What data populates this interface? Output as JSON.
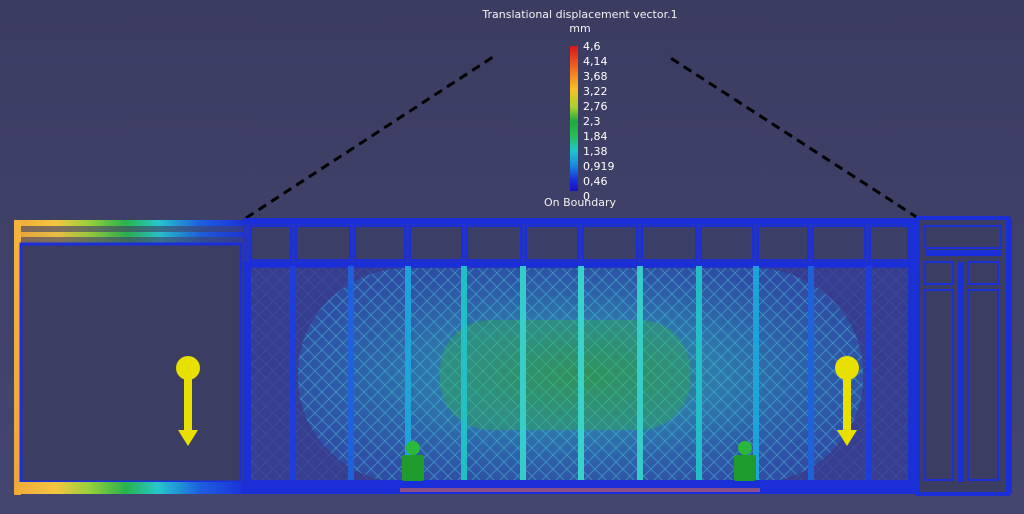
{
  "legend": {
    "title": "Translational displacement vector.1",
    "unit": "mm",
    "ticks": [
      "4,6",
      "4,14",
      "3,68",
      "3,22",
      "2,76",
      "2,3",
      "1,84",
      "1,38",
      "0,919",
      "0,46",
      "0"
    ],
    "footer": "On Boundary"
  },
  "colors": {
    "background": "#3e3f64",
    "mesh_low": "#1b2fd8",
    "mesh_mid": "#1ec8d0",
    "mesh_high": "#2fb53b",
    "load_arrow": "#e8e000",
    "support": "#1f9a2c"
  },
  "icons": [
    "load-arrow-icon",
    "support-icon",
    "support-icon",
    "load-arrow-icon"
  ]
}
